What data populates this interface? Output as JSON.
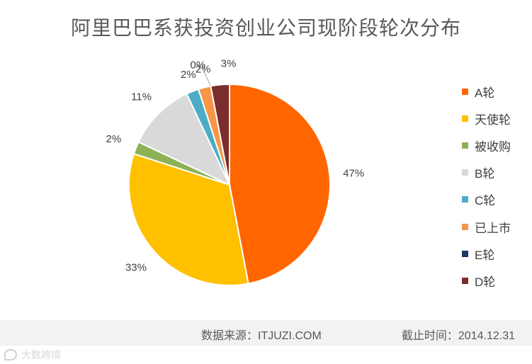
{
  "chart_data": {
    "type": "pie",
    "title": "阿里巴巴系获投资创业公司现阶段轮次分布",
    "categories": [
      "A轮",
      "天使轮",
      "被收购",
      "B轮",
      "C轮",
      "已上市",
      "E轮",
      "D轮"
    ],
    "values": [
      47,
      33,
      2,
      11,
      2,
      2,
      0,
      3
    ],
    "labels": [
      "47%",
      "33%",
      "2%",
      "11%",
      "2%",
      "2%",
      "0%",
      "3%"
    ],
    "colors": [
      "#FF6600",
      "#FFC000",
      "#8DB255",
      "#D9D9D9",
      "#4BACC6",
      "#F79646",
      "#1F3864",
      "#7B2C2C"
    ],
    "legend_position": "right",
    "start_angle_deg": 0,
    "direction": "clockwise"
  },
  "footer": {
    "source": "数据来源：ITJUZI.COM",
    "deadline": "截止时间：2014.12.31"
  },
  "watermark": {
    "text": "大数跨境"
  }
}
